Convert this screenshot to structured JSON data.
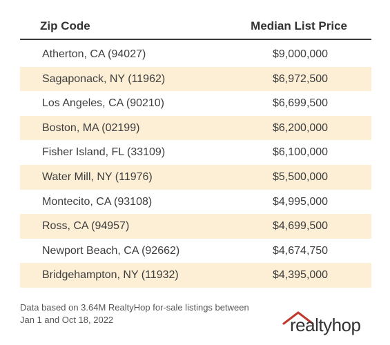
{
  "chart_data": {
    "type": "table",
    "columns": [
      "Zip Code",
      "Median List Price"
    ],
    "rows": [
      {
        "zip": "Atherton, CA (94027)",
        "price": "$9,000,000",
        "value": 9000000
      },
      {
        "zip": "Sagaponack, NY (11962)",
        "price": "$6,972,500",
        "value": 6972500
      },
      {
        "zip": "Los Angeles, CA (90210)",
        "price": "$6,699,500",
        "value": 6699500
      },
      {
        "zip": "Boston, MA (02199)",
        "price": "$6,200,000",
        "value": 6200000
      },
      {
        "zip": "Fisher Island, FL (33109)",
        "price": "$6,100,000",
        "value": 6100000
      },
      {
        "zip": "Water Mill, NY (11976)",
        "price": "$5,500,000",
        "value": 5500000
      },
      {
        "zip": "Montecito, CA (93108)",
        "price": "$4,995,000",
        "value": 4995000
      },
      {
        "zip": "Ross, CA (94957)",
        "price": "$4,699,500",
        "value": 4699500
      },
      {
        "zip": "Newport Beach, CA (92662)",
        "price": "$4,674,750",
        "value": 4674750
      },
      {
        "zip": "Bridgehampton, NY (11932)",
        "price": "$4,395,000",
        "value": 4395000
      }
    ]
  },
  "footnote": {
    "line1": "Data based on 3.64M RealtyHop for-sale listings between",
    "line2": "Jan 1 and Oct 18, 2022"
  },
  "logo": {
    "text": "realtyhop",
    "color": "#c0392b"
  },
  "colors": {
    "row_shade": "#fdefd6",
    "header_rule": "#3a3a3a"
  }
}
